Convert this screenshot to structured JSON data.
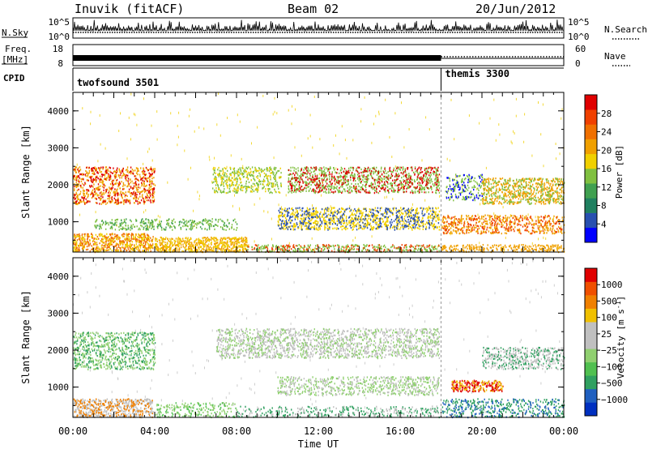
{
  "header": {
    "station": "Inuvik (fitACF)",
    "beam": "Beam 02",
    "date": "20/Jun/2012"
  },
  "params": {
    "nsky_label": "N.Sky",
    "nsky_ticks": [
      "10^5",
      "10^0"
    ],
    "nsearch_label": "N.Search",
    "nsearch_ticks": [
      "10^5",
      "10^0"
    ],
    "freq_label": "Freq.",
    "freq_unit": "[MHz]",
    "freq_ticks": [
      "18",
      "8"
    ],
    "nave_label": "Nave",
    "nave_ticks": [
      "60",
      "0"
    ],
    "cpid_label": "CPID",
    "cpid_modes": [
      {
        "name": "twofsound 3501",
        "start_hour": 0,
        "end_hour": 18
      },
      {
        "name": "themis 3300",
        "start_hour": 18,
        "end_hour": 24
      }
    ]
  },
  "chart_data": [
    {
      "type": "heatmap",
      "panel": "power",
      "ylabel": "Slant Range [km]",
      "ylim": [
        180,
        4500
      ],
      "yticks": [
        "4000",
        "3000",
        "2000",
        "1000"
      ],
      "xlim": [
        0,
        24
      ],
      "colorbar": {
        "label": "Power [dB]",
        "ticks": [
          "28",
          "24",
          "20",
          "16",
          "12",
          "8",
          "4"
        ],
        "colors": [
          "#0000ff",
          "#2850b0",
          "#208060",
          "#40a050",
          "#80c040",
          "#f0d000",
          "#f0a000",
          "#f07000",
          "#f04000",
          "#e00000"
        ]
      },
      "scatter_bands": [
        {
          "t0": 0.0,
          "t1": 3.9,
          "r0": 200,
          "r1": 700,
          "level": 0.85
        },
        {
          "t0": 4.0,
          "t1": 8.5,
          "r0": 200,
          "r1": 600,
          "level": 0.9
        },
        {
          "t0": 8.5,
          "t1": 17.9,
          "r0": 200,
          "r1": 400,
          "level": 0.6
        },
        {
          "t0": 18.0,
          "t1": 24.0,
          "r0": 200,
          "r1": 400,
          "level": 0.55
        },
        {
          "t0": 0.0,
          "t1": 4.0,
          "r0": 1500,
          "r1": 2500,
          "level": 0.55
        },
        {
          "t0": 6.8,
          "t1": 10.2,
          "r0": 1800,
          "r1": 2500,
          "level": 0.5
        },
        {
          "t0": 10.5,
          "t1": 17.9,
          "r0": 1800,
          "r1": 2500,
          "level": 0.6
        },
        {
          "t0": 10.0,
          "t1": 17.9,
          "r0": 800,
          "r1": 1400,
          "level": 0.65
        },
        {
          "t0": 18.2,
          "t1": 20.0,
          "r0": 1600,
          "r1": 2300,
          "level": 0.4
        },
        {
          "t0": 20.0,
          "t1": 24.0,
          "r0": 1500,
          "r1": 2200,
          "level": 0.65
        },
        {
          "t0": 18.0,
          "t1": 24.0,
          "r0": 700,
          "r1": 1200,
          "level": 0.55
        },
        {
          "t0": 1.0,
          "t1": 8.0,
          "r0": 800,
          "r1": 1100,
          "level": 0.4
        }
      ]
    },
    {
      "type": "heatmap",
      "panel": "velocity",
      "ylabel": "Slant Range [km]",
      "ylim": [
        180,
        4500
      ],
      "yticks": [
        "4000",
        "3000",
        "2000",
        "1000"
      ],
      "xlim": [
        0,
        24
      ],
      "xlabel": "Time UT",
      "xticks": [
        "00:00",
        "04:00",
        "08:00",
        "12:00",
        "16:00",
        "20:00",
        "00:00"
      ],
      "colorbar": {
        "label": "Velocity [m s",
        "label_sup": "-1",
        "label_end": "]",
        "ticks": [
          "1000",
          "500",
          "100",
          "25",
          "−25",
          "−100",
          "−500",
          "−1000"
        ],
        "colors": [
          "#0030c0",
          "#2060c0",
          "#30a060",
          "#50c050",
          "#90d070",
          "#c0c0c0",
          "#c0c0c0",
          "#f0c000",
          "#f08000",
          "#f05000",
          "#e00000"
        ]
      },
      "scatter_bands": [
        {
          "t0": 0.0,
          "t1": 3.9,
          "r0": 200,
          "r1": 700,
          "level": 0.8
        },
        {
          "t0": 4.0,
          "t1": 8.0,
          "r0": 200,
          "r1": 600,
          "level": 0.35
        },
        {
          "t0": 8.0,
          "t1": 17.9,
          "r0": 200,
          "r1": 500,
          "level": 0.3
        },
        {
          "t0": 0.0,
          "t1": 4.0,
          "r0": 1500,
          "r1": 2500,
          "level": 0.5
        },
        {
          "t0": 7.0,
          "t1": 17.9,
          "r0": 1800,
          "r1": 2600,
          "level": 0.5
        },
        {
          "t0": 10.0,
          "t1": 17.9,
          "r0": 800,
          "r1": 1300,
          "level": 0.45
        },
        {
          "t0": 18.5,
          "t1": 21.0,
          "r0": 900,
          "r1": 1200,
          "level": 0.85
        },
        {
          "t0": 20.0,
          "t1": 24.0,
          "r0": 1500,
          "r1": 2100,
          "level": 0.5
        },
        {
          "t0": 18.0,
          "t1": 24.0,
          "r0": 200,
          "r1": 700,
          "level": 0.4
        }
      ]
    }
  ]
}
